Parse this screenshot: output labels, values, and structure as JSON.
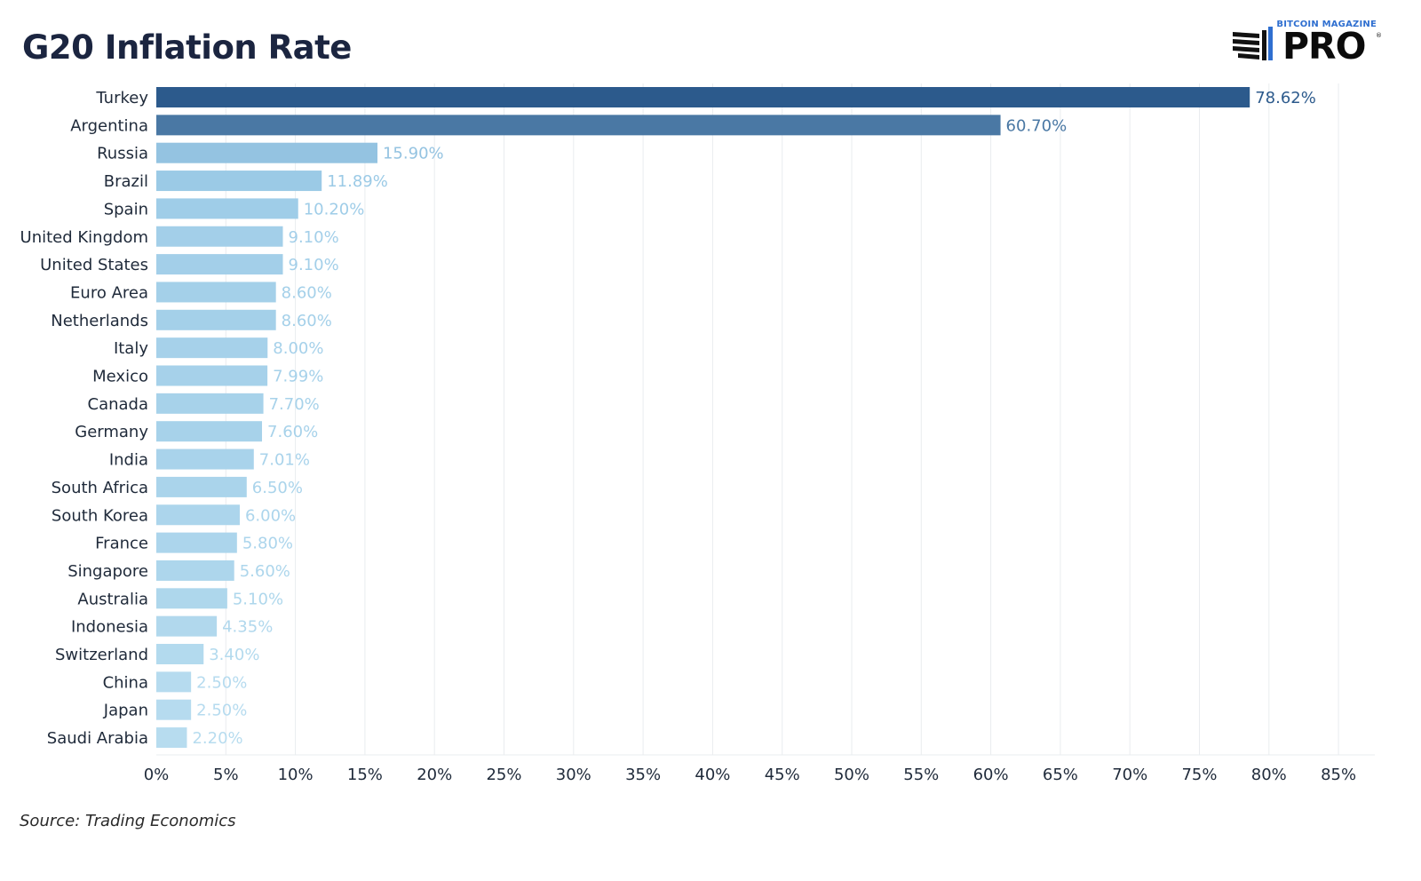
{
  "page": {
    "title": "G20 Inflation Rate",
    "source": "Source: Trading Economics",
    "logo": {
      "top_text": "BITCOIN MAGAZINE",
      "word": "PRO",
      "mark": "®"
    }
  },
  "chart_data": {
    "type": "bar",
    "orientation": "horizontal",
    "title": "G20 Inflation Rate",
    "xlabel": "",
    "ylabel": "",
    "xlim": [
      0,
      85
    ],
    "x_ticks": [
      "0%",
      "5%",
      "10%",
      "15%",
      "20%",
      "25%",
      "30%",
      "35%",
      "40%",
      "45%",
      "50%",
      "55%",
      "60%",
      "65%",
      "70%",
      "75%",
      "80%",
      "85%"
    ],
    "grid": true,
    "categories": [
      "Turkey",
      "Argentina",
      "Russia",
      "Brazil",
      "Spain",
      "United Kingdom",
      "United States",
      "Euro Area",
      "Netherlands",
      "Italy",
      "Mexico",
      "Canada",
      "Germany",
      "India",
      "South Africa",
      "South Korea",
      "France",
      "Singapore",
      "Australia",
      "Indonesia",
      "Switzerland",
      "China",
      "Japan",
      "Saudi Arabia"
    ],
    "values": [
      78.62,
      60.7,
      15.9,
      11.89,
      10.2,
      9.1,
      9.1,
      8.6,
      8.6,
      8.0,
      7.99,
      7.7,
      7.6,
      7.01,
      6.5,
      6.0,
      5.8,
      5.6,
      5.1,
      4.35,
      3.4,
      2.5,
      2.5,
      2.2
    ],
    "value_labels": [
      "78.62%",
      "60.70%",
      "15.90%",
      "11.89%",
      "10.20%",
      "9.10%",
      "9.10%",
      "8.60%",
      "8.60%",
      "8.00%",
      "7.99%",
      "7.70%",
      "7.60%",
      "7.01%",
      "6.50%",
      "6.00%",
      "5.80%",
      "5.60%",
      "5.10%",
      "4.35%",
      "3.40%",
      "2.50%",
      "2.50%",
      "2.20%"
    ],
    "color_scale": {
      "low": "#b7dcef",
      "mid": "#9ccbe7",
      "high": "#2c5a8c"
    },
    "colors": {
      "category_label": "#1f2a3a",
      "tick_label": "#1f2a3a",
      "grid": "#e9ecef"
    }
  }
}
